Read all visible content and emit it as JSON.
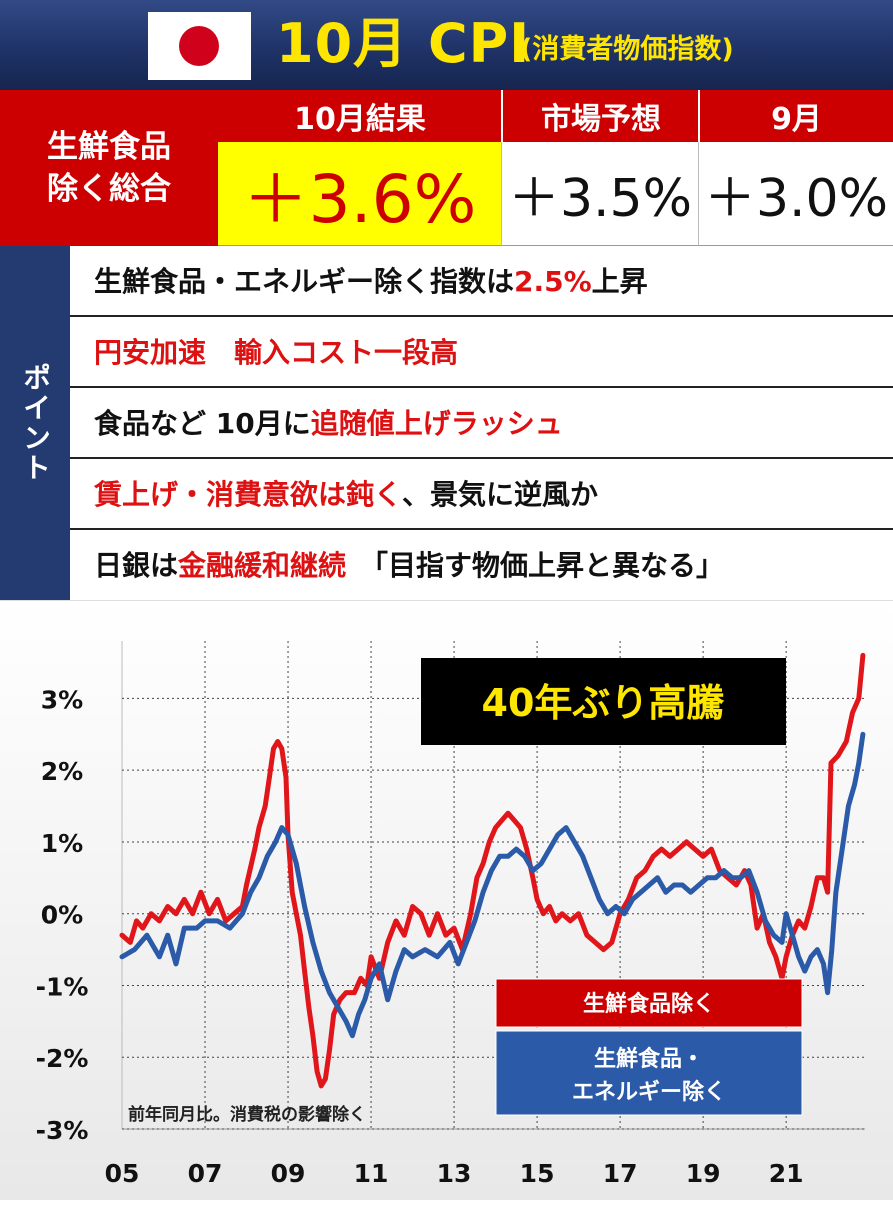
{
  "header": {
    "title": "10月 CPI",
    "subtitle": "(消費者物価指数)",
    "flag_icon": "japan-flag-icon",
    "colors": {
      "background": "#1f3368",
      "title": "#ffe600"
    }
  },
  "table": {
    "row_label_line1": "生鮮食品",
    "row_label_line2": "除く総合",
    "columns": [
      {
        "header": "10月結果",
        "value": "＋3.6%"
      },
      {
        "header": "市場予想",
        "value": "＋3.5%"
      },
      {
        "header": "9月",
        "value": "＋3.0%"
      }
    ],
    "colors": {
      "header": "#cc0000",
      "highlight": "#ffff00"
    }
  },
  "points": {
    "label": "ポイント",
    "items": [
      [
        {
          "t": "生鮮食品・エネルギー除く指数は",
          "r": false
        },
        {
          "t": "2.5%",
          "r": true
        },
        {
          "t": "上昇",
          "r": false
        }
      ],
      [
        {
          "t": "円安加速　輸入コスト一段高",
          "r": true
        }
      ],
      [
        {
          "t": "食品など 10月に",
          "r": false
        },
        {
          "t": "追随値上げラッシュ",
          "r": true
        }
      ],
      [
        {
          "t": "賃上げ・消費意欲は鈍く",
          "r": true
        },
        {
          "t": "、景気に逆風か",
          "r": false
        }
      ],
      [
        {
          "t": "日銀は",
          "r": false
        },
        {
          "t": "金融緩和継続",
          "r": true
        },
        {
          "t": "　「目指す物価上昇と異なる」",
          "r": false
        }
      ]
    ]
  },
  "chart_data": {
    "type": "line",
    "annotation": "40年ぶり高騰",
    "note": "前年同月比。消費税の影響除く",
    "y_tick_labels": [
      "3%",
      "2%",
      "1%",
      "0%",
      "-1%",
      "-2%",
      "-3%"
    ],
    "y_ticks": [
      3,
      2,
      1,
      0,
      -1,
      -2,
      -3
    ],
    "x_tick_labels": [
      "05",
      "07",
      "09",
      "11",
      "13",
      "15",
      "17",
      "19",
      "21"
    ],
    "x_ticks": [
      2005,
      2007,
      2009,
      2011,
      2013,
      2015,
      2017,
      2019,
      2021
    ],
    "xlim": [
      2005,
      2022.9
    ],
    "ylim": [
      -3.0,
      3.8
    ],
    "grid": true,
    "series": [
      {
        "name": "生鮮食品除く",
        "color": "#e0161b",
        "points": [
          [
            2005.0,
            -0.3
          ],
          [
            2005.2,
            -0.4
          ],
          [
            2005.35,
            -0.1
          ],
          [
            2005.5,
            -0.2
          ],
          [
            2005.7,
            0.0
          ],
          [
            2005.9,
            -0.1
          ],
          [
            2006.1,
            0.1
          ],
          [
            2006.3,
            0.0
          ],
          [
            2006.5,
            0.2
          ],
          [
            2006.7,
            0.0
          ],
          [
            2006.9,
            0.3
          ],
          [
            2007.1,
            0.0
          ],
          [
            2007.3,
            0.2
          ],
          [
            2007.5,
            -0.1
          ],
          [
            2007.7,
            0.0
          ],
          [
            2007.9,
            0.1
          ],
          [
            2008.0,
            0.4
          ],
          [
            2008.2,
            0.9
          ],
          [
            2008.3,
            1.2
          ],
          [
            2008.45,
            1.5
          ],
          [
            2008.55,
            1.9
          ],
          [
            2008.65,
            2.3
          ],
          [
            2008.75,
            2.4
          ],
          [
            2008.85,
            2.3
          ],
          [
            2008.95,
            1.9
          ],
          [
            2009.0,
            1.1
          ],
          [
            2009.1,
            0.3
          ],
          [
            2009.2,
            0.0
          ],
          [
            2009.3,
            -0.3
          ],
          [
            2009.4,
            -0.8
          ],
          [
            2009.5,
            -1.3
          ],
          [
            2009.6,
            -1.7
          ],
          [
            2009.7,
            -2.2
          ],
          [
            2009.8,
            -2.4
          ],
          [
            2009.9,
            -2.3
          ],
          [
            2010.0,
            -1.9
          ],
          [
            2010.1,
            -1.4
          ],
          [
            2010.25,
            -1.2
          ],
          [
            2010.4,
            -1.1
          ],
          [
            2010.6,
            -1.1
          ],
          [
            2010.75,
            -0.9
          ],
          [
            2010.9,
            -1.0
          ],
          [
            2011.0,
            -0.6
          ],
          [
            2011.2,
            -0.9
          ],
          [
            2011.4,
            -0.4
          ],
          [
            2011.6,
            -0.1
          ],
          [
            2011.8,
            -0.3
          ],
          [
            2012.0,
            0.1
          ],
          [
            2012.2,
            0.0
          ],
          [
            2012.4,
            -0.3
          ],
          [
            2012.6,
            0.0
          ],
          [
            2012.8,
            -0.3
          ],
          [
            2013.0,
            -0.2
          ],
          [
            2013.2,
            -0.5
          ],
          [
            2013.4,
            0.0
          ],
          [
            2013.55,
            0.5
          ],
          [
            2013.7,
            0.7
          ],
          [
            2013.85,
            1.0
          ],
          [
            2014.0,
            1.2
          ],
          [
            2014.15,
            1.3
          ],
          [
            2014.3,
            1.4
          ],
          [
            2014.45,
            1.3
          ],
          [
            2014.6,
            1.2
          ],
          [
            2014.75,
            0.9
          ],
          [
            2014.9,
            0.5
          ],
          [
            2015.0,
            0.2
          ],
          [
            2015.15,
            0.0
          ],
          [
            2015.3,
            0.1
          ],
          [
            2015.45,
            -0.1
          ],
          [
            2015.6,
            0.0
          ],
          [
            2015.8,
            -0.1
          ],
          [
            2016.0,
            0.0
          ],
          [
            2016.2,
            -0.3
          ],
          [
            2016.4,
            -0.4
          ],
          [
            2016.6,
            -0.5
          ],
          [
            2016.8,
            -0.4
          ],
          [
            2017.0,
            0.0
          ],
          [
            2017.2,
            0.2
          ],
          [
            2017.4,
            0.5
          ],
          [
            2017.6,
            0.6
          ],
          [
            2017.8,
            0.8
          ],
          [
            2018.0,
            0.9
          ],
          [
            2018.2,
            0.8
          ],
          [
            2018.4,
            0.9
          ],
          [
            2018.6,
            1.0
          ],
          [
            2018.8,
            0.9
          ],
          [
            2019.0,
            0.8
          ],
          [
            2019.2,
            0.9
          ],
          [
            2019.4,
            0.6
          ],
          [
            2019.6,
            0.5
          ],
          [
            2019.8,
            0.4
          ],
          [
            2020.0,
            0.6
          ],
          [
            2020.15,
            0.4
          ],
          [
            2020.3,
            -0.2
          ],
          [
            2020.45,
            0.0
          ],
          [
            2020.6,
            -0.4
          ],
          [
            2020.75,
            -0.6
          ],
          [
            2020.9,
            -0.9
          ],
          [
            2021.0,
            -0.6
          ],
          [
            2021.15,
            -0.3
          ],
          [
            2021.3,
            -0.1
          ],
          [
            2021.45,
            -0.2
          ],
          [
            2021.6,
            0.1
          ],
          [
            2021.75,
            0.5
          ],
          [
            2021.9,
            0.5
          ],
          [
            2022.0,
            0.3
          ],
          [
            2022.08,
            2.1
          ],
          [
            2022.25,
            2.2
          ],
          [
            2022.45,
            2.4
          ],
          [
            2022.6,
            2.8
          ],
          [
            2022.75,
            3.0
          ],
          [
            2022.85,
            3.6
          ]
        ]
      },
      {
        "name": "生鮮食品・エネルギー除く",
        "color": "#2b5aa8",
        "points": [
          [
            2005.0,
            -0.6
          ],
          [
            2005.3,
            -0.5
          ],
          [
            2005.6,
            -0.3
          ],
          [
            2005.9,
            -0.6
          ],
          [
            2006.1,
            -0.3
          ],
          [
            2006.3,
            -0.7
          ],
          [
            2006.5,
            -0.2
          ],
          [
            2006.8,
            -0.2
          ],
          [
            2007.0,
            -0.1
          ],
          [
            2007.3,
            -0.1
          ],
          [
            2007.6,
            -0.2
          ],
          [
            2007.9,
            0.0
          ],
          [
            2008.1,
            0.3
          ],
          [
            2008.3,
            0.5
          ],
          [
            2008.5,
            0.8
          ],
          [
            2008.7,
            1.0
          ],
          [
            2008.85,
            1.2
          ],
          [
            2009.0,
            1.1
          ],
          [
            2009.2,
            0.7
          ],
          [
            2009.4,
            0.1
          ],
          [
            2009.6,
            -0.4
          ],
          [
            2009.8,
            -0.8
          ],
          [
            2010.0,
            -1.1
          ],
          [
            2010.2,
            -1.3
          ],
          [
            2010.4,
            -1.5
          ],
          [
            2010.55,
            -1.7
          ],
          [
            2010.7,
            -1.4
          ],
          [
            2010.85,
            -1.2
          ],
          [
            2011.0,
            -0.9
          ],
          [
            2011.2,
            -0.7
          ],
          [
            2011.4,
            -1.2
          ],
          [
            2011.6,
            -0.8
          ],
          [
            2011.8,
            -0.5
          ],
          [
            2012.0,
            -0.6
          ],
          [
            2012.3,
            -0.5
          ],
          [
            2012.6,
            -0.6
          ],
          [
            2012.9,
            -0.4
          ],
          [
            2013.1,
            -0.7
          ],
          [
            2013.3,
            -0.4
          ],
          [
            2013.5,
            -0.1
          ],
          [
            2013.7,
            0.3
          ],
          [
            2013.9,
            0.6
          ],
          [
            2014.1,
            0.8
          ],
          [
            2014.3,
            0.8
          ],
          [
            2014.5,
            0.9
          ],
          [
            2014.7,
            0.8
          ],
          [
            2014.9,
            0.6
          ],
          [
            2015.1,
            0.7
          ],
          [
            2015.3,
            0.9
          ],
          [
            2015.5,
            1.1
          ],
          [
            2015.7,
            1.2
          ],
          [
            2015.9,
            1.0
          ],
          [
            2016.1,
            0.8
          ],
          [
            2016.3,
            0.5
          ],
          [
            2016.5,
            0.2
          ],
          [
            2016.7,
            0.0
          ],
          [
            2016.9,
            0.1
          ],
          [
            2017.1,
            0.0
          ],
          [
            2017.3,
            0.2
          ],
          [
            2017.5,
            0.3
          ],
          [
            2017.7,
            0.4
          ],
          [
            2017.9,
            0.5
          ],
          [
            2018.1,
            0.3
          ],
          [
            2018.3,
            0.4
          ],
          [
            2018.5,
            0.4
          ],
          [
            2018.7,
            0.3
          ],
          [
            2018.9,
            0.4
          ],
          [
            2019.1,
            0.5
          ],
          [
            2019.3,
            0.5
          ],
          [
            2019.5,
            0.6
          ],
          [
            2019.7,
            0.5
          ],
          [
            2019.9,
            0.5
          ],
          [
            2020.1,
            0.6
          ],
          [
            2020.3,
            0.3
          ],
          [
            2020.5,
            -0.1
          ],
          [
            2020.7,
            -0.3
          ],
          [
            2020.9,
            -0.4
          ],
          [
            2021.0,
            0.0
          ],
          [
            2021.15,
            -0.3
          ],
          [
            2021.3,
            -0.6
          ],
          [
            2021.45,
            -0.8
          ],
          [
            2021.6,
            -0.6
          ],
          [
            2021.75,
            -0.5
          ],
          [
            2021.9,
            -0.7
          ],
          [
            2022.0,
            -1.1
          ],
          [
            2022.1,
            -0.5
          ],
          [
            2022.2,
            0.3
          ],
          [
            2022.35,
            0.9
          ],
          [
            2022.5,
            1.5
          ],
          [
            2022.65,
            1.8
          ],
          [
            2022.75,
            2.1
          ],
          [
            2022.85,
            2.5
          ]
        ]
      }
    ],
    "legend": {
      "placement": "bottom-right",
      "label_blue_line1": "生鮮食品・",
      "label_blue_line2": "エネルギー除く"
    }
  }
}
